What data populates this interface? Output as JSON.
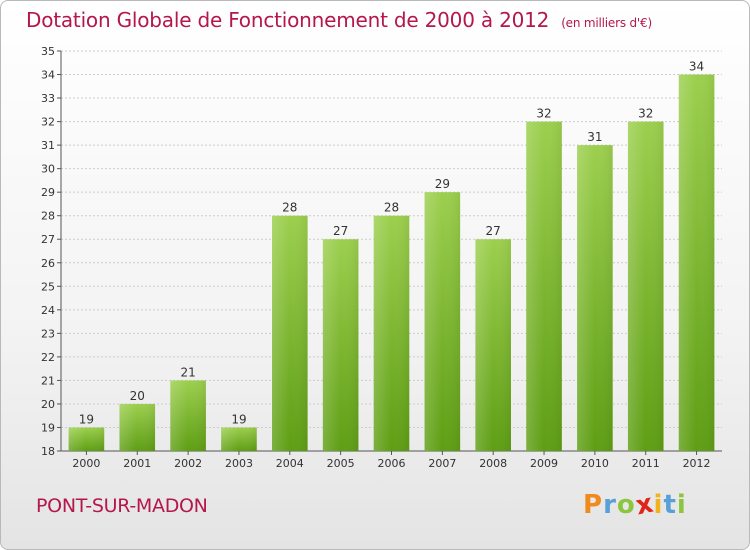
{
  "chart_data": {
    "type": "bar",
    "title": "Dotation Globale de Fonctionnement de 2000 à 2012",
    "subtitle": "(en milliers d'€)",
    "xlabel": "",
    "ylabel": "",
    "categories": [
      "2000",
      "2001",
      "2002",
      "2003",
      "2004",
      "2005",
      "2006",
      "2007",
      "2008",
      "2009",
      "2010",
      "2011",
      "2012"
    ],
    "values": [
      19,
      20,
      21,
      19,
      28,
      27,
      28,
      29,
      27,
      32,
      31,
      32,
      34
    ],
    "ylim": [
      18,
      35
    ],
    "yticks": [
      18,
      19,
      20,
      21,
      22,
      23,
      24,
      25,
      26,
      27,
      28,
      29,
      30,
      31,
      32,
      33,
      34,
      35
    ],
    "grid": true,
    "bar_color_top": "#9ccf4e",
    "bar_color_bottom": "#5e9e14"
  },
  "location": "PONT-SUR-MADON",
  "brand": {
    "letters": [
      "P",
      "r",
      "o",
      "x",
      "i",
      "t",
      "i"
    ],
    "colors": [
      "#f08a1c",
      "#5aa0d8",
      "#8cc63f",
      "#e2231a",
      "#f2b21b",
      "#5aa0d8",
      "#8cc63f"
    ]
  },
  "colors": {
    "title": "#b5174b",
    "grid": "#cccccc"
  }
}
